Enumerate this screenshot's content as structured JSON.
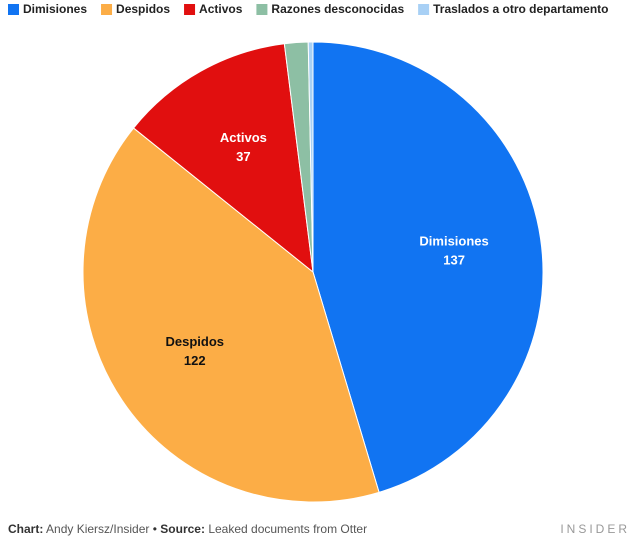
{
  "chart_data": {
    "type": "pie",
    "categories": [
      "Dimisiones",
      "Despidos",
      "Activos",
      "Razones desconocidas",
      "Traslados a otro departamento"
    ],
    "values": [
      137,
      122,
      37,
      5,
      1
    ],
    "colors": [
      "#1174f2",
      "#fcad46",
      "#e10f0f",
      "#8dbfa4",
      "#a8d0f5"
    ],
    "legend": "top"
  },
  "footer": {
    "chart_label": "Chart:",
    "chart_by": "Andy Kiersz/Insider",
    "separator": "•",
    "source_label": "Source:",
    "source_text": "Leaked documents from Otter",
    "brand": "INSIDER"
  }
}
